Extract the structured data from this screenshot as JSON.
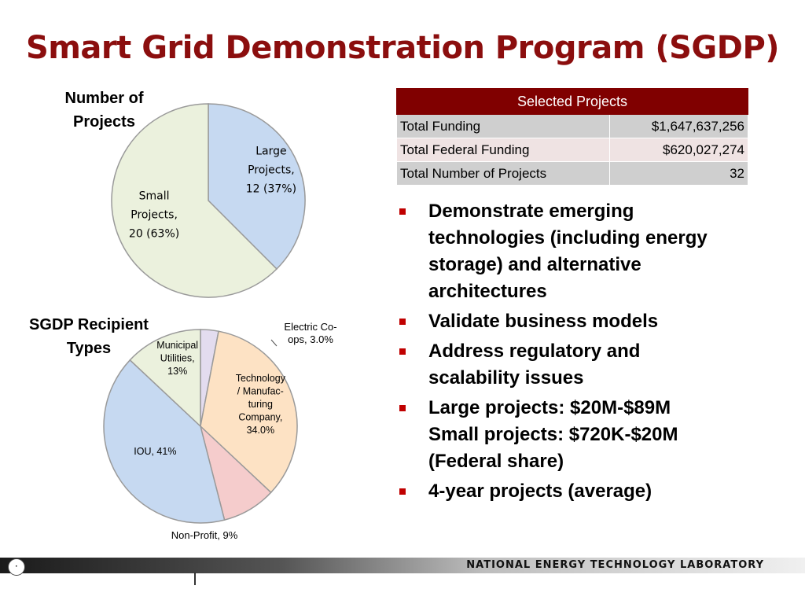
{
  "slide": {
    "title": "Smart Grid Demonstration Program (SGDP)",
    "footer_text": "NATIONAL ENERGY TECHNOLOGY LABORATORY"
  },
  "chart_data": [
    {
      "type": "pie",
      "title": "Number of Projects",
      "slices": [
        {
          "label_lines": [
            "Large",
            "Projects,",
            "12 (37%)"
          ],
          "value": 12,
          "percent": 37,
          "color": "#c6d9f1"
        },
        {
          "label_lines": [
            "Small",
            "Projects,",
            "20 (63%)"
          ],
          "value": 20,
          "percent": 63,
          "color": "#ebf1dd"
        }
      ]
    },
    {
      "type": "pie",
      "title": "SGDP Recipient Types",
      "slices": [
        {
          "label_lines": [
            "Electric Co-",
            "ops, 3.0%"
          ],
          "value": 3.0,
          "color": "#e3dcef"
        },
        {
          "label_lines": [
            "Technology",
            "/ Manufac-",
            "turing",
            "Company,",
            "34.0%"
          ],
          "value": 34.0,
          "color": "#fde2c4"
        },
        {
          "label_lines": [
            "Non-Profit, 9%"
          ],
          "value": 9,
          "color": "#f5cccc"
        },
        {
          "label_lines": [
            "IOU, 41%"
          ],
          "value": 41,
          "color": "#c6d9f1"
        },
        {
          "label_lines": [
            "Municipal",
            "Utilities,",
            "13%"
          ],
          "value": 13,
          "color": "#ebf1dd"
        }
      ]
    }
  ],
  "table": {
    "header": "Selected Projects",
    "rows": [
      {
        "label": "Total Funding",
        "value": "$1,647,637,256"
      },
      {
        "label": "Total Federal Funding",
        "value": "$620,027,274"
      },
      {
        "label": "Total Number of Projects",
        "value": "32"
      }
    ]
  },
  "bullets": [
    "Demonstrate emerging technologies (including energy storage) and alternative architectures",
    "Validate business models",
    "Address regulatory and scalability issues",
    "Large projects:   $20M-$89M Small projects: $720K-$20M (Federal share)",
    "4-year projects (average)"
  ]
}
